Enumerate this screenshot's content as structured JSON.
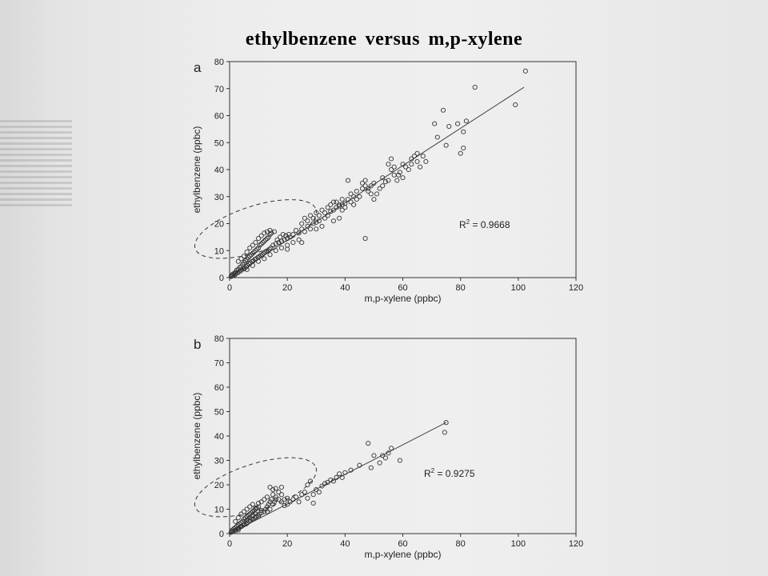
{
  "slide": {
    "title": "ethylbenzene  versus  m,p-xylene"
  },
  "chart_data": [
    {
      "type": "scatter",
      "panel_label": "a",
      "xlabel": "m,p-xylene (ppbc)",
      "ylabel": "ethylbenzene (ppbc)",
      "xlim": [
        0,
        120
      ],
      "ylim": [
        0,
        80
      ],
      "xticks": [
        0,
        20,
        40,
        60,
        80,
        100,
        120
      ],
      "yticks": [
        0,
        10,
        20,
        30,
        40,
        50,
        60,
        70,
        80
      ],
      "grid": false,
      "annotation": {
        "r2_prefix": "R",
        "r2_sup": "2",
        "r2_value": " = 0.9668"
      },
      "trend_line": {
        "x": [
          0,
          102
        ],
        "y": [
          0,
          70.5
        ]
      },
      "highlight_ellipse": {
        "cx": 9,
        "cy": 18,
        "rx": 22,
        "ry": 8.5
      },
      "points": [
        [
          0.5,
          0.4
        ],
        [
          0.8,
          0.6
        ],
        [
          1,
          1.2
        ],
        [
          1.2,
          0.8
        ],
        [
          1.5,
          1.5
        ],
        [
          1.8,
          1
        ],
        [
          2,
          2
        ],
        [
          2.2,
          1.5
        ],
        [
          2.5,
          2.8
        ],
        [
          2.8,
          1.8
        ],
        [
          3,
          3
        ],
        [
          3.2,
          2.2
        ],
        [
          3.5,
          3.8
        ],
        [
          3.8,
          2.5
        ],
        [
          4,
          4
        ],
        [
          4.2,
          3
        ],
        [
          4.5,
          4.8
        ],
        [
          4.8,
          3.2
        ],
        [
          5,
          5.5
        ],
        [
          5.2,
          3.5
        ],
        [
          5.5,
          6.2
        ],
        [
          5.8,
          4
        ],
        [
          6,
          6.8
        ],
        [
          6.2,
          4.5
        ],
        [
          6.5,
          7.5
        ],
        [
          6.8,
          5
        ],
        [
          7,
          8
        ],
        [
          7.2,
          5.5
        ],
        [
          7.5,
          8.5
        ],
        [
          7.8,
          6
        ],
        [
          8,
          9
        ],
        [
          8.2,
          6.2
        ],
        [
          8.5,
          9.5
        ],
        [
          8.8,
          6.8
        ],
        [
          9,
          10
        ],
        [
          9.2,
          7
        ],
        [
          9.5,
          10.5
        ],
        [
          9.8,
          7.5
        ],
        [
          10,
          11
        ],
        [
          10.3,
          7.8
        ],
        [
          10.5,
          12
        ],
        [
          10.8,
          8.2
        ],
        [
          11,
          12.5
        ],
        [
          11.3,
          8.5
        ],
        [
          11.5,
          13
        ],
        [
          11.8,
          9
        ],
        [
          12,
          13.5
        ],
        [
          12.3,
          9.5
        ],
        [
          12.5,
          14
        ],
        [
          12.8,
          9.8
        ],
        [
          13,
          14.5
        ],
        [
          13.3,
          10
        ],
        [
          13.5,
          15
        ],
        [
          13.8,
          10.5
        ],
        [
          14,
          16
        ],
        [
          14.3,
          11
        ],
        [
          14.5,
          16.5
        ],
        [
          15,
          12
        ],
        [
          15.5,
          17
        ],
        [
          16,
          12.5
        ],
        [
          16.5,
          14
        ],
        [
          17,
          13
        ],
        [
          17.5,
          15
        ],
        [
          18,
          13.5
        ],
        [
          18.5,
          16
        ],
        [
          19,
          14
        ],
        [
          19.5,
          15.5
        ],
        [
          20,
          14.5
        ],
        [
          20.5,
          16
        ],
        [
          21,
          15
        ],
        [
          3,
          6
        ],
        [
          4,
          7
        ],
        [
          5,
          8
        ],
        [
          6,
          9.5
        ],
        [
          7,
          11
        ],
        [
          8,
          12
        ],
        [
          9,
          13
        ],
        [
          10,
          14.5
        ],
        [
          11,
          15.5
        ],
        [
          12,
          16.5
        ],
        [
          13,
          17
        ],
        [
          14,
          17.5
        ],
        [
          6,
          3
        ],
        [
          8,
          4.5
        ],
        [
          10,
          6
        ],
        [
          12,
          7
        ],
        [
          14,
          8.5
        ],
        [
          16,
          10
        ],
        [
          18,
          11
        ],
        [
          20,
          12
        ],
        [
          22,
          13
        ],
        [
          24,
          14
        ],
        [
          22,
          16
        ],
        [
          23,
          17.5
        ],
        [
          24,
          16.5
        ],
        [
          25,
          18
        ],
        [
          26,
          17
        ],
        [
          27,
          19
        ],
        [
          28,
          18
        ],
        [
          29,
          20
        ],
        [
          30,
          20.5
        ],
        [
          31,
          21
        ],
        [
          25,
          20
        ],
        [
          26,
          22
        ],
        [
          27,
          21
        ],
        [
          28,
          23
        ],
        [
          29,
          22
        ],
        [
          30,
          24
        ],
        [
          31,
          23
        ],
        [
          32,
          25
        ],
        [
          33,
          24
        ],
        [
          34,
          26
        ],
        [
          33,
          22
        ],
        [
          34,
          23
        ],
        [
          35,
          24.5
        ],
        [
          36,
          25
        ],
        [
          37,
          26
        ],
        [
          38,
          26.5
        ],
        [
          39,
          27
        ],
        [
          40,
          27.5
        ],
        [
          35,
          27
        ],
        [
          36,
          28
        ],
        [
          30,
          18
        ],
        [
          32,
          19
        ],
        [
          25,
          13
        ],
        [
          20,
          10.5
        ],
        [
          37,
          28
        ],
        [
          38,
          27
        ],
        [
          39,
          29
        ],
        [
          41,
          29
        ],
        [
          42,
          31
        ],
        [
          43,
          30
        ],
        [
          44,
          32
        ],
        [
          45,
          30
        ],
        [
          46,
          33
        ],
        [
          47,
          34
        ],
        [
          48,
          33
        ],
        [
          49,
          31
        ],
        [
          50,
          35
        ],
        [
          46,
          35
        ],
        [
          47,
          36
        ],
        [
          41,
          36
        ],
        [
          42,
          28
        ],
        [
          40,
          26
        ],
        [
          39,
          25
        ],
        [
          43,
          27
        ],
        [
          44,
          29
        ],
        [
          38,
          22
        ],
        [
          36,
          21
        ],
        [
          47,
          14.5
        ],
        [
          49,
          34
        ],
        [
          48,
          32
        ],
        [
          53,
          34
        ],
        [
          54,
          35.5
        ],
        [
          55,
          36
        ],
        [
          56,
          40
        ],
        [
          57,
          38
        ],
        [
          55,
          42
        ],
        [
          56,
          44
        ],
        [
          57,
          41
        ],
        [
          60,
          37
        ],
        [
          61,
          41
        ],
        [
          60,
          42
        ],
        [
          62,
          40
        ],
        [
          63,
          42
        ],
        [
          64,
          45
        ],
        [
          65,
          43
        ],
        [
          66,
          41
        ],
        [
          67,
          45
        ],
        [
          68,
          43
        ],
        [
          65,
          46
        ],
        [
          63,
          44
        ],
        [
          71,
          57
        ],
        [
          72,
          52
        ],
        [
          74,
          62
        ],
        [
          75,
          49
        ],
        [
          76,
          56
        ],
        [
          79,
          57
        ],
        [
          80,
          46
        ],
        [
          81,
          48
        ],
        [
          81,
          54
        ],
        [
          82,
          58
        ],
        [
          85,
          70.5
        ],
        [
          99,
          64
        ],
        [
          102.5,
          76.5
        ],
        [
          58,
          36
        ],
        [
          58.5,
          38
        ],
        [
          52,
          33
        ],
        [
          51,
          31
        ],
        [
          53,
          37
        ],
        [
          50,
          29
        ],
        [
          59,
          39
        ]
      ]
    },
    {
      "type": "scatter",
      "panel_label": "b",
      "xlabel": "m,p-xylene (ppbc)",
      "ylabel": "ethylbenzene (ppbc)",
      "xlim": [
        0,
        120
      ],
      "ylim": [
        0,
        80
      ],
      "xticks": [
        0,
        20,
        40,
        60,
        80,
        100,
        120
      ],
      "yticks": [
        0,
        10,
        20,
        30,
        40,
        50,
        60,
        70,
        80
      ],
      "grid": false,
      "annotation": {
        "r2_prefix": "R",
        "r2_sup": "2",
        "r2_value": " = 0.9275"
      },
      "trend_line": {
        "x": [
          0,
          75
        ],
        "y": [
          0,
          45.5
        ]
      },
      "highlight_ellipse": {
        "cx": 9,
        "cy": 19,
        "rx": 22,
        "ry": 9.5
      },
      "points": [
        [
          0.5,
          0.5
        ],
        [
          0.8,
          1
        ],
        [
          1,
          1.5
        ],
        [
          1.2,
          0.8
        ],
        [
          1.5,
          2
        ],
        [
          1.8,
          1.2
        ],
        [
          2,
          2.5
        ],
        [
          2.2,
          1.5
        ],
        [
          2.5,
          3
        ],
        [
          2.8,
          2
        ],
        [
          3,
          3.5
        ],
        [
          3.2,
          2.2
        ],
        [
          3.5,
          4
        ],
        [
          3.8,
          2.8
        ],
        [
          4,
          4.5
        ],
        [
          4.2,
          3
        ],
        [
          4.5,
          5
        ],
        [
          4.8,
          3.5
        ],
        [
          5,
          6
        ],
        [
          5.2,
          3.8
        ],
        [
          5.5,
          6.5
        ],
        [
          5.8,
          4
        ],
        [
          6,
          7
        ],
        [
          6.2,
          4.5
        ],
        [
          6.5,
          7.5
        ],
        [
          6.8,
          5
        ],
        [
          7,
          8
        ],
        [
          7.2,
          5.5
        ],
        [
          7.5,
          8.5
        ],
        [
          7.8,
          6
        ],
        [
          8,
          9
        ],
        [
          8.2,
          6
        ],
        [
          8.5,
          9.5
        ],
        [
          8.8,
          6.5
        ],
        [
          9,
          10
        ],
        [
          9.2,
          7
        ],
        [
          9.5,
          10.5
        ],
        [
          9.8,
          7.5
        ],
        [
          10,
          11
        ],
        [
          10.3,
          8
        ],
        [
          2,
          5
        ],
        [
          3,
          6.5
        ],
        [
          4,
          8
        ],
        [
          5,
          9
        ],
        [
          6,
          10
        ],
        [
          7,
          11
        ],
        [
          8,
          12
        ],
        [
          9,
          10.5
        ],
        [
          10,
          12.5
        ],
        [
          11,
          13
        ],
        [
          11,
          8.5
        ],
        [
          12,
          9
        ],
        [
          12.5,
          10
        ],
        [
          13,
          11
        ],
        [
          13.5,
          12
        ],
        [
          14,
          13
        ],
        [
          14.5,
          14
        ],
        [
          15,
          12
        ],
        [
          15.5,
          13
        ],
        [
          16,
          14
        ],
        [
          14,
          19
        ],
        [
          15,
          18
        ],
        [
          16,
          18.5
        ],
        [
          17,
          17
        ],
        [
          18,
          16
        ],
        [
          15,
          16
        ],
        [
          16,
          15
        ],
        [
          17,
          14
        ],
        [
          18,
          13
        ],
        [
          19,
          14
        ],
        [
          12,
          14
        ],
        [
          13,
          15
        ],
        [
          18,
          19
        ],
        [
          19,
          11.5
        ],
        [
          20,
          12
        ],
        [
          21,
          13
        ],
        [
          22,
          14
        ],
        [
          24,
          13
        ],
        [
          23,
          15
        ],
        [
          20,
          14.5
        ],
        [
          25,
          16
        ],
        [
          26,
          17
        ],
        [
          27,
          20
        ],
        [
          28,
          21.5
        ],
        [
          29,
          16
        ],
        [
          30,
          18
        ],
        [
          32,
          19.5
        ],
        [
          33,
          20.5
        ],
        [
          34,
          21
        ],
        [
          35,
          22
        ],
        [
          36,
          21.5
        ],
        [
          37,
          23
        ],
        [
          38,
          24.5
        ],
        [
          39,
          23
        ],
        [
          40,
          25
        ],
        [
          42,
          26
        ],
        [
          29,
          12.5
        ],
        [
          27,
          14.5
        ],
        [
          31,
          17
        ],
        [
          45,
          28
        ],
        [
          48,
          37
        ],
        [
          49,
          27
        ],
        [
          50,
          32
        ],
        [
          52,
          29
        ],
        [
          53,
          32
        ],
        [
          54,
          31
        ],
        [
          55,
          33
        ],
        [
          56,
          35
        ],
        [
          59,
          30
        ],
        [
          75,
          45.5
        ],
        [
          74.5,
          41.5
        ],
        [
          10,
          7
        ],
        [
          11,
          9.5
        ],
        [
          8,
          7.5
        ],
        [
          9,
          8
        ],
        [
          6,
          5.5
        ],
        [
          7,
          6.5
        ],
        [
          13,
          9
        ],
        [
          14,
          10
        ],
        [
          3,
          1.5
        ]
      ]
    }
  ]
}
